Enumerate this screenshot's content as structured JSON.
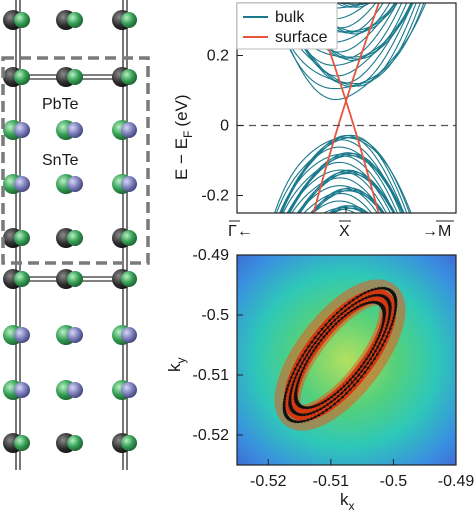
{
  "crystal": {
    "layer_top_label": "PbTe",
    "layer_bottom_label": "SnTe",
    "colors": {
      "pb": "#3a3a3a",
      "te": "#3aa25a",
      "sn": "#7e80b8",
      "frame": "#7a7a7a"
    }
  },
  "band_panel": {
    "ylabel": "E − E",
    "ylabel_sub": "F",
    "ylabel_unit": "(eV)",
    "ylim": [
      -0.25,
      0.35
    ],
    "yticks": [
      "0.2",
      "0",
      "-0.2"
    ],
    "ytick_values": [
      0.2,
      0,
      -0.2
    ],
    "xtick_left": "Γ←",
    "xtick_center": "X",
    "xtick_right": "→M",
    "legend": [
      {
        "name": "bulk",
        "color": "#1a7a8c"
      },
      {
        "name": "surface",
        "color": "#e8553e"
      }
    ],
    "fermi_level": 0
  },
  "spin_panel": {
    "xlabel": "k",
    "xlabel_sub": "x",
    "ylabel": "k",
    "ylabel_sub": "y",
    "xlim": [
      -0.525,
      -0.49
    ],
    "ylim": [
      -0.525,
      -0.49
    ],
    "xticks": [
      "-0.52",
      "-0.51",
      "-0.5",
      "-0.49"
    ],
    "xtick_values": [
      -0.52,
      -0.51,
      -0.5,
      -0.49
    ],
    "yticks": [
      "-0.49",
      "-0.5",
      "-0.51",
      "-0.52"
    ],
    "ytick_values": [
      -0.49,
      -0.5,
      -0.51,
      -0.52
    ]
  }
}
